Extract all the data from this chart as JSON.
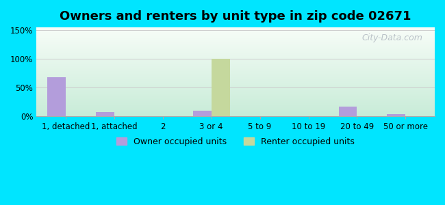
{
  "title": "Owners and renters by unit type in zip code 02671",
  "categories": [
    "1, detached",
    "1, attached",
    "2",
    "3 or 4",
    "5 to 9",
    "10 to 19",
    "20 to 49",
    "50 or more"
  ],
  "owner_values": [
    68,
    8,
    0,
    10,
    0,
    0,
    17,
    4
  ],
  "renter_values": [
    0,
    0,
    0,
    100,
    0,
    0,
    0,
    0
  ],
  "owner_color": "#b39ddb",
  "renter_color": "#c5d89d",
  "owner_label": "Owner occupied units",
  "renter_label": "Renter occupied units",
  "yticks": [
    0,
    50,
    100,
    150
  ],
  "ytick_labels": [
    "0%",
    "50%",
    "100%",
    "150%"
  ],
  "ylim": [
    0,
    155
  ],
  "bar_width": 0.38,
  "background_outer": "#00e5ff",
  "grid_color": "#cccccc",
  "title_fontsize": 13,
  "tick_fontsize": 8.5,
  "legend_fontsize": 9
}
